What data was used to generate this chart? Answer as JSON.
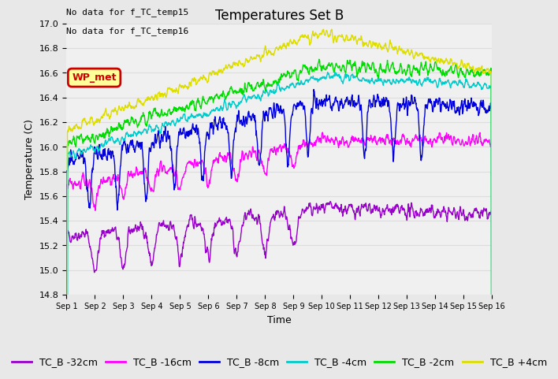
{
  "title": "Temperatures Set B",
  "xlabel": "Time",
  "ylabel": "Temperature (C)",
  "ylim": [
    14.8,
    17.0
  ],
  "n_points": 1440,
  "days": 15,
  "colors": {
    "tc32": "#9900cc",
    "tc16": "#ff00ff",
    "tc8": "#0000dd",
    "tc4": "#00cccc",
    "tc2": "#00dd00",
    "tcp4": "#dddd00"
  },
  "legend_labels": [
    "TC_B -32cm",
    "TC_B -16cm",
    "TC_B -8cm",
    "TC_B -4cm",
    "TC_B -2cm",
    "TC_B +4cm"
  ],
  "text_annotations": [
    "No data for f_TC_temp15",
    "No data for f_TC_temp16"
  ],
  "wp_met_label": "WP_met",
  "wp_met_bg": "#ffff99",
  "wp_met_border": "#cc0000",
  "title_fontsize": 12,
  "axis_label_fontsize": 9,
  "tick_fontsize": 8,
  "legend_fontsize": 9,
  "annotation_fontsize": 8,
  "grid_color": "#dddddd",
  "bg_color": "#e8e8e8",
  "plot_bg": "#f0f0f0",
  "line_width": 1.0,
  "yticks": [
    14.8,
    15.0,
    15.2,
    15.4,
    15.6,
    15.8,
    16.0,
    16.2,
    16.4,
    16.6,
    16.8,
    17.0
  ],
  "xtick_days": [
    1,
    2,
    3,
    4,
    5,
    6,
    7,
    8,
    9,
    10,
    11,
    12,
    13,
    14,
    15,
    16
  ]
}
